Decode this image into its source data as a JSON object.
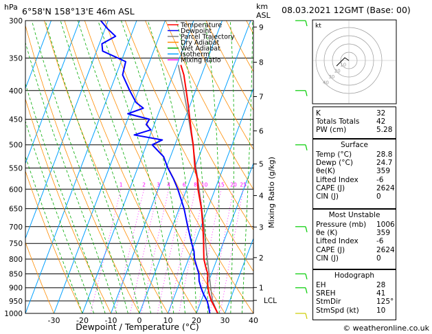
{
  "header": {
    "unit_hpa": "hPa",
    "location": "6°58'N 158°13'E 46m ASL",
    "unit_km": "km",
    "unit_asl": "ASL",
    "date": "08.03.2021 12GMT (Base: 00)"
  },
  "legend": [
    {
      "label": "Temperature",
      "color": "#ff0000"
    },
    {
      "label": "Dewpoint",
      "color": "#0000ff"
    },
    {
      "label": "Parcel Trajectory",
      "color": "#808080"
    },
    {
      "label": "Dry Adiabat",
      "color": "#ff8c00"
    },
    {
      "label": "Wet Adiabat",
      "color": "#00aa00"
    },
    {
      "label": "Isotherm",
      "color": "#00a0ff"
    },
    {
      "label": "Mixing Ratio",
      "color": "#ff00ff"
    }
  ],
  "colors": {
    "temperature": "#ff0000",
    "dewpoint": "#0000ff",
    "parcel": "#808080",
    "dry_adiabat": "#ff8c00",
    "wet_adiabat": "#00aa00",
    "isotherm": "#00a0ff",
    "mixing_ratio": "#ff00ff",
    "wind": "#00cc00",
    "wind_bottom": "#cccc00"
  },
  "chart_data": {
    "type": "skew-t",
    "xlabel": "Dewpoint / Temperature (°C)",
    "ylabel_right": "Mixing Ratio (g/kg)",
    "pressure_ticks": [
      "300",
      "350",
      "400",
      "450",
      "500",
      "550",
      "600",
      "650",
      "700",
      "750",
      "800",
      "850",
      "900",
      "950",
      "1000"
    ],
    "temp_ticks": [
      "-30",
      "-20",
      "-10",
      "0",
      "10",
      "20",
      "30",
      "40"
    ],
    "km_ticks": [
      {
        "label": "9",
        "p": 308
      },
      {
        "label": "8",
        "p": 356
      },
      {
        "label": "7",
        "p": 410
      },
      {
        "label": "6",
        "p": 472
      },
      {
        "label": "5",
        "p": 541
      },
      {
        "label": "4",
        "p": 616
      },
      {
        "label": "3",
        "p": 701
      },
      {
        "label": "2",
        "p": 795
      },
      {
        "label": "1",
        "p": 899
      }
    ],
    "lcl": {
      "label": "LCL",
      "p": 948
    },
    "mixing_ratio_labels": [
      "1",
      "2",
      "3",
      "4",
      "6",
      "8",
      "10",
      "15",
      "20",
      "25"
    ],
    "temperature_profile": [
      [
        1000,
        27.5
      ],
      [
        975,
        25.6
      ],
      [
        950,
        23.6
      ],
      [
        925,
        22.0
      ],
      [
        900,
        20.6
      ],
      [
        875,
        19.6
      ],
      [
        850,
        18.7
      ],
      [
        825,
        17.0
      ],
      [
        800,
        15.4
      ],
      [
        775,
        14.3
      ],
      [
        750,
        13.2
      ],
      [
        700,
        10.7
      ],
      [
        650,
        7.8
      ],
      [
        600,
        4.0
      ],
      [
        575,
        2.4
      ],
      [
        550,
        0.1
      ],
      [
        500,
        -3.6
      ],
      [
        475,
        -5.9
      ],
      [
        450,
        -8.2
      ],
      [
        425,
        -10.6
      ],
      [
        400,
        -13.3
      ],
      [
        375,
        -16.2
      ],
      [
        360,
        -18.6
      ]
    ],
    "dewpoint_profile": [
      [
        1000,
        24.7
      ],
      [
        975,
        23.5
      ],
      [
        950,
        22.1
      ],
      [
        925,
        20.0
      ],
      [
        900,
        18.2
      ],
      [
        875,
        16.6
      ],
      [
        850,
        15.6
      ],
      [
        800,
        12.1
      ],
      [
        775,
        10.9
      ],
      [
        750,
        9.0
      ],
      [
        700,
        5.4
      ],
      [
        650,
        1.7
      ],
      [
        600,
        -3.1
      ],
      [
        575,
        -6.0
      ],
      [
        550,
        -9.4
      ],
      [
        525,
        -12.4
      ],
      [
        500,
        -18.0
      ],
      [
        490,
        -15.1
      ],
      [
        480,
        -25.6
      ],
      [
        470,
        -20.5
      ],
      [
        460,
        -22.8
      ],
      [
        450,
        -22.4
      ],
      [
        440,
        -30.7
      ],
      [
        430,
        -26.0
      ],
      [
        420,
        -29.3
      ],
      [
        400,
        -33.1
      ],
      [
        375,
        -37.7
      ],
      [
        355,
        -38.4
      ],
      [
        340,
        -47.9
      ],
      [
        330,
        -49.1
      ],
      [
        320,
        -45.3
      ],
      [
        310,
        -49.2
      ],
      [
        300,
        -52.6
      ]
    ],
    "parcel_profile": [
      [
        1000,
        27.5
      ],
      [
        950,
        24.0
      ],
      [
        900,
        21.6
      ],
      [
        850,
        19.2
      ],
      [
        800,
        16.6
      ],
      [
        750,
        13.9
      ],
      [
        700,
        11.1
      ],
      [
        650,
        7.9
      ],
      [
        600,
        4.4
      ],
      [
        550,
        0.5
      ],
      [
        500,
        -3.7
      ],
      [
        450,
        -8.6
      ],
      [
        400,
        -14.2
      ],
      [
        360,
        -19.5
      ]
    ],
    "wind_barbs_p": [
      300,
      400,
      500,
      700,
      850,
      900,
      1000
    ]
  },
  "indices": {
    "general": [
      {
        "k": "K",
        "v": "32"
      },
      {
        "k": "Totals Totals",
        "v": "42"
      },
      {
        "k": "PW (cm)",
        "v": "5.28"
      }
    ],
    "surface_title": "Surface",
    "surface": [
      {
        "k": "Temp (°C)",
        "v": "28.8"
      },
      {
        "k": "Dewp (°C)",
        "v": "24.7"
      },
      {
        "k": "θe(K)",
        "v": "359"
      },
      {
        "k": "Lifted Index",
        "v": "-6"
      },
      {
        "k": "CAPE (J)",
        "v": "2624"
      },
      {
        "k": "CIN (J)",
        "v": "0"
      }
    ],
    "unstable_title": "Most Unstable",
    "unstable": [
      {
        "k": "Pressure (mb)",
        "v": "1006"
      },
      {
        "k": "θe (K)",
        "v": "359"
      },
      {
        "k": "Lifted Index",
        "v": "-6"
      },
      {
        "k": "CAPE (J)",
        "v": "2624"
      },
      {
        "k": "CIN (J)",
        "v": "0"
      }
    ],
    "hodograph_title": "Hodograph",
    "hodograph": [
      {
        "k": "EH",
        "v": "28"
      },
      {
        "k": "SREH",
        "v": "41"
      },
      {
        "k": "StmDir",
        "v": "125°"
      },
      {
        "k": "StmSpd (kt)",
        "v": "10"
      }
    ]
  },
  "hodo_panel": {
    "label": "kt",
    "rings": [
      "10",
      "20",
      "30",
      "40"
    ]
  },
  "footer": "© weatheronline.co.uk"
}
